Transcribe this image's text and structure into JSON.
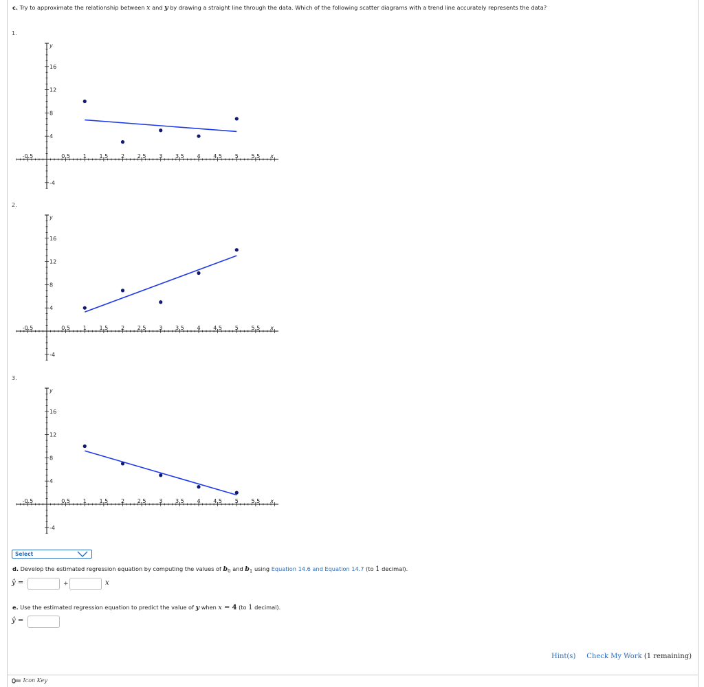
{
  "question_c": {
    "label": "c.",
    "text_parts": [
      "Try to approximate the relationship between ",
      "x",
      " and ",
      "y",
      " by drawing a straight line through the data. Which of the following scatter diagrams with a trend line accurately represents the data?"
    ]
  },
  "options": [
    {
      "label": "1."
    },
    {
      "label": "2."
    },
    {
      "label": "3."
    }
  ],
  "axis": {
    "x_label": "x",
    "y_label": "y",
    "x_ticks": [
      "-0.5",
      "0.5",
      "1",
      "1.5",
      "2",
      "2.5",
      "3",
      "3.5",
      "4",
      "4.5",
      "5",
      "5.5"
    ],
    "y_ticks": [
      "16",
      "12",
      "8",
      "4",
      "-4"
    ]
  },
  "chart_data": [
    {
      "type": "scatter",
      "title": "1.",
      "xlabel": "x",
      "ylabel": "y",
      "xlim": [
        -0.8,
        6.1
      ],
      "ylim": [
        -5,
        20
      ],
      "points": [
        [
          1,
          10
        ],
        [
          2,
          3
        ],
        [
          3,
          5
        ],
        [
          4,
          4
        ],
        [
          5,
          7
        ]
      ],
      "trend_line": [
        [
          1,
          6.8
        ],
        [
          5,
          4.8
        ]
      ]
    },
    {
      "type": "scatter",
      "title": "2.",
      "xlabel": "x",
      "ylabel": "y",
      "xlim": [
        -0.8,
        6.1
      ],
      "ylim": [
        -5,
        20
      ],
      "points": [
        [
          1,
          4
        ],
        [
          2,
          7
        ],
        [
          3,
          5
        ],
        [
          4,
          10
        ],
        [
          5,
          14
        ]
      ],
      "trend_line": [
        [
          1,
          3.3
        ],
        [
          5,
          13
        ]
      ]
    },
    {
      "type": "scatter",
      "title": "3.",
      "xlabel": "x",
      "ylabel": "y",
      "xlim": [
        -0.8,
        6.1
      ],
      "ylim": [
        -5,
        20
      ],
      "points": [
        [
          1,
          10
        ],
        [
          2,
          7
        ],
        [
          3,
          5
        ],
        [
          4,
          3
        ],
        [
          5,
          2
        ]
      ],
      "trend_line": [
        [
          1,
          9.2
        ],
        [
          5,
          1.6
        ]
      ]
    }
  ],
  "select": {
    "label": "Select"
  },
  "question_d": {
    "label": "d.",
    "text_before": "Develop the estimated regression equation by computing the values of ",
    "b0": "b",
    "b0_sub": "0",
    "and": " and ",
    "b1": "b",
    "b1_sub": "1",
    "using": " using ",
    "link": "Equation 14.6 and Equation 14.7",
    "precision_open": " (to ",
    "precision_num": "1",
    "precision_close": " decimal).",
    "yhat": "ŷ =",
    "plus": "+",
    "x_var": "x",
    "b0_value": "",
    "b1_value": ""
  },
  "question_e": {
    "label": "e.",
    "text_before": "Use the estimated regression equation to predict the value of ",
    "y_var": "y",
    "when": " when ",
    "x_eq": "x",
    "eq": " = ",
    "x_val": "4",
    "precision_open": " (to ",
    "precision_num": "1",
    "precision_close": " decimal).",
    "yhat": "ŷ =",
    "value": ""
  },
  "footer": {
    "hints": "Hint(s)",
    "check": "Check My Work",
    "remaining": "(1 remaining)",
    "icon_key": "Icon Key"
  },
  "colors": {
    "accent": "#2a6ebb",
    "trend_line": "#1f3be8",
    "points": "#101a70"
  }
}
